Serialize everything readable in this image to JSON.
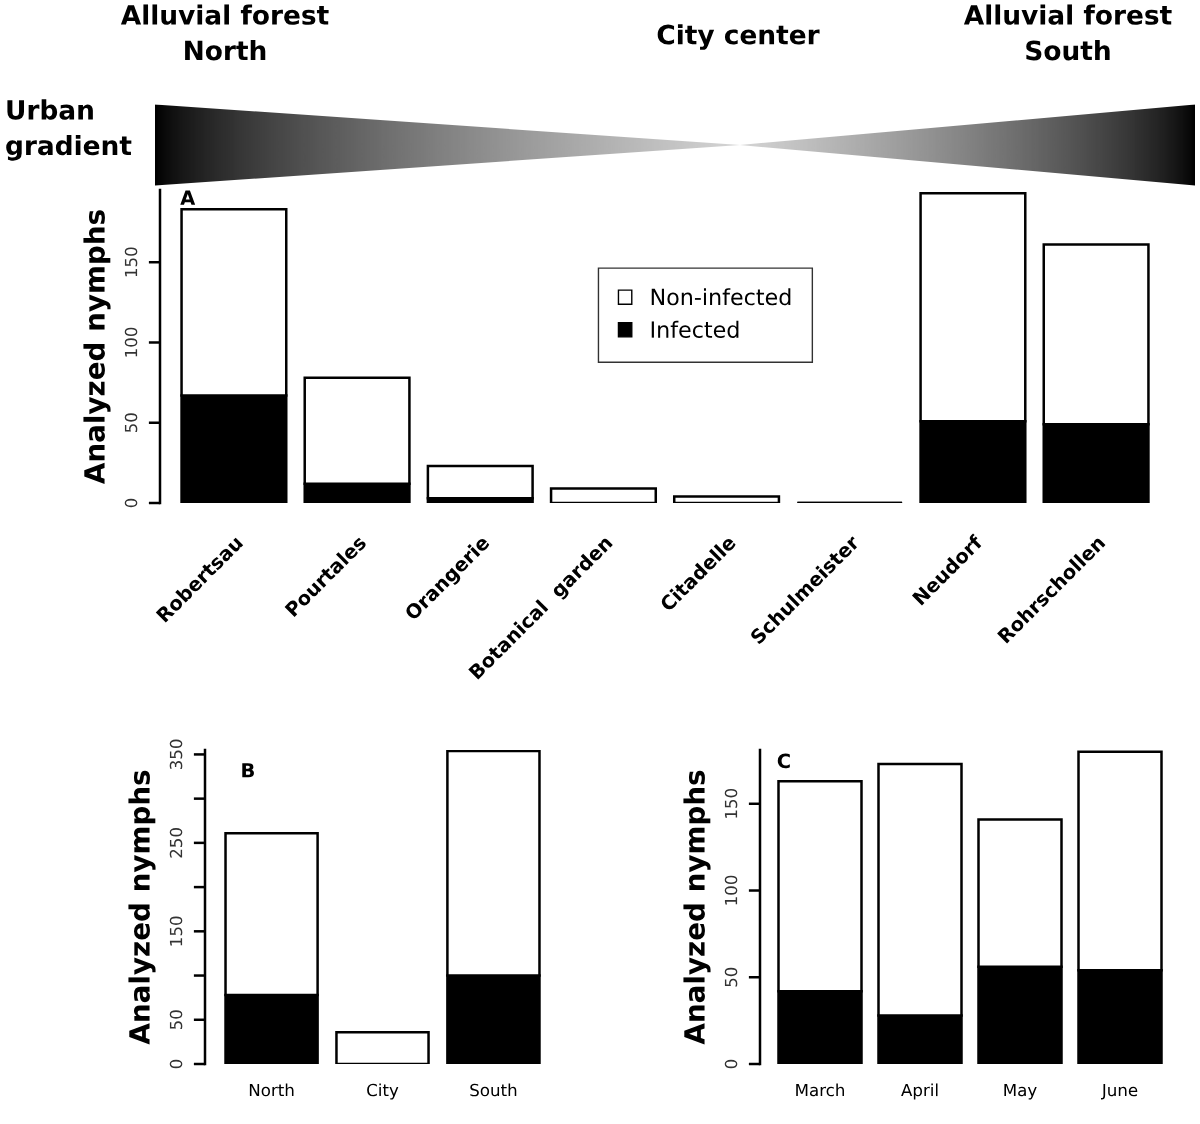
{
  "chart_data": [
    {
      "type": "bar",
      "stacked": true,
      "ylabel": "Analyzed nymphs",
      "categories": [
        "Robertsau",
        "Pourtales",
        "Orangerie",
        "Botanical  garden",
        "Citadelle",
        "Schulmeister",
        "Neudorf",
        "Rohrschollen"
      ],
      "series": [
        {
          "name": "Infected",
          "color": "#000000",
          "values": [
            67,
            12,
            3,
            0,
            0,
            0,
            51,
            49
          ]
        },
        {
          "name": "Non-infected",
          "color": "#ffffff",
          "values": [
            116,
            66,
            20,
            9,
            4,
            0,
            142,
            112
          ]
        }
      ],
      "ylim": [
        0,
        195
      ],
      "yticks": [
        0,
        50,
        100,
        150
      ],
      "legend": "center",
      "grid": false,
      "annotations": [
        "A",
        "Alluvial forest\nNorth",
        "City center",
        "Alluvial forest\nSouth",
        "Urban\ngradient"
      ]
    },
    {
      "type": "bar",
      "stacked": true,
      "ylabel": "Analyzed nymphs",
      "categories": [
        "North",
        "City",
        "South"
      ],
      "series": [
        {
          "color": "#000000",
          "values": [
            78,
            0,
            100
          ]
        },
        {
          "color": "#ffffff",
          "values": [
            183,
            36,
            254
          ]
        }
      ],
      "ylim": [
        0,
        355
      ],
      "yticks": [
        0,
        50,
        {
          "value": 100,
          "label": null
        },
        150,
        {
          "value": 200,
          "label": null
        },
        250,
        {
          "value": 300,
          "label": null
        },
        350
      ],
      "grid": false,
      "annotations": [
        "B"
      ]
    },
    {
      "type": "bar",
      "stacked": true,
      "ylabel": "Analyzed nymphs",
      "categories": [
        "March",
        "April",
        "May",
        "June"
      ],
      "series": [
        {
          "color": "#000000",
          "values": [
            42,
            28,
            56,
            54
          ]
        },
        {
          "color": "#ffffff",
          "values": [
            121,
            145,
            85,
            126
          ]
        }
      ],
      "ylim": [
        0,
        181
      ],
      "yticks": [
        0,
        50,
        100,
        150
      ],
      "grid": false,
      "annotations": [
        "C"
      ]
    }
  ]
}
